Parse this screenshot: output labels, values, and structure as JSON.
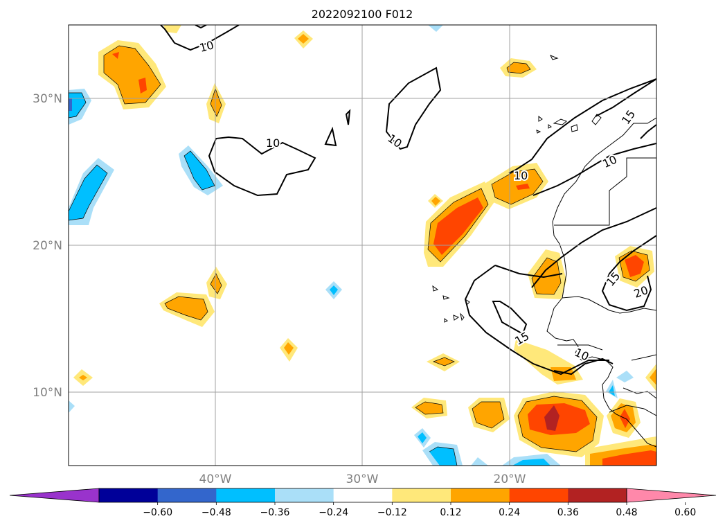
{
  "title": "2022092100 F012",
  "lat_labels": [
    "30°N",
    "20°N",
    "10°N"
  ],
  "lon_labels": [
    "40°W",
    "30°W",
    "20°W"
  ],
  "colorbar": {
    "tick_labels": [
      "−0.60",
      "−0.48",
      "−0.36",
      "−0.24",
      "−0.12",
      "0.12",
      "0.24",
      "0.36",
      "0.48",
      "0.60"
    ],
    "colors": [
      "#9933cc",
      "#000099",
      "#3366cc",
      "#00bfff",
      "#aadff8",
      "#ffffff",
      "#ffe87a",
      "#ffa500",
      "#ff4500",
      "#b22222",
      "#ff88aa"
    ]
  },
  "contour_labels": [
    "10",
    "10",
    "10",
    "10",
    "10",
    "15",
    "15",
    "15",
    "20",
    "10"
  ],
  "fill_colors": {
    "pale_yellow": "#ffe87a",
    "orange": "#ffa500",
    "red_orange": "#ff4500",
    "dark_red": "#b22222",
    "pale_blue": "#aadff8",
    "blue": "#00bfff",
    "mid_blue": "#3366cc"
  }
}
